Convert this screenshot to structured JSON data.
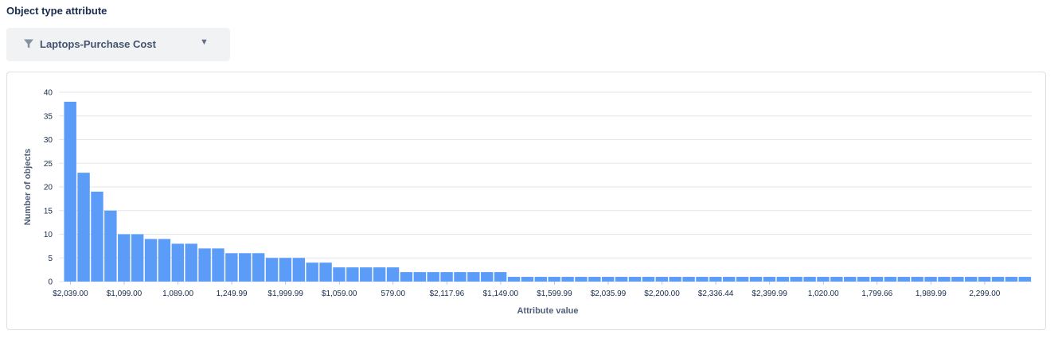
{
  "section_title": "Object type attribute",
  "filter": {
    "icon": "filter-icon",
    "value": "Laptops-Purchase Cost",
    "chevron_icon": "chevron-down-icon"
  },
  "colors": {
    "bar": "#5b9cf8",
    "grid": "#e4e6ea",
    "card_border": "#dcdfe4",
    "select_bg": "#f1f2f4"
  },
  "chart_data": {
    "type": "bar",
    "title": "",
    "xlabel": "Attribute value",
    "ylabel": "Number of objects",
    "ylim": [
      0,
      40
    ],
    "yticks": [
      0,
      5,
      10,
      15,
      20,
      25,
      30,
      35,
      40
    ],
    "grid": true,
    "x_tick_labels": [
      "$2,039.00",
      "$1,099.00",
      "1,089.00",
      "1,249.99",
      "$1,999.99",
      "$1,059.00",
      "579.00",
      "$2,117.96",
      "$1,149.00",
      "$1,599.99",
      "$2,035.99",
      "$2,200.00",
      "$2,336.44",
      "$2,399.99",
      "1,020.00",
      "1,799.66",
      "1,989.99",
      "2,299.00"
    ],
    "x_tick_every": 4,
    "values": [
      38,
      23,
      19,
      15,
      10,
      10,
      9,
      9,
      8,
      8,
      7,
      7,
      6,
      6,
      6,
      5,
      5,
      5,
      4,
      4,
      3,
      3,
      3,
      3,
      3,
      2,
      2,
      2,
      2,
      2,
      2,
      2,
      2,
      1,
      1,
      1,
      1,
      1,
      1,
      1,
      1,
      1,
      1,
      1,
      1,
      1,
      1,
      1,
      1,
      1,
      1,
      1,
      1,
      1,
      1,
      1,
      1,
      1,
      1,
      1,
      1,
      1,
      1,
      1,
      1,
      1,
      1,
      1,
      1,
      1,
      1,
      1
    ]
  }
}
